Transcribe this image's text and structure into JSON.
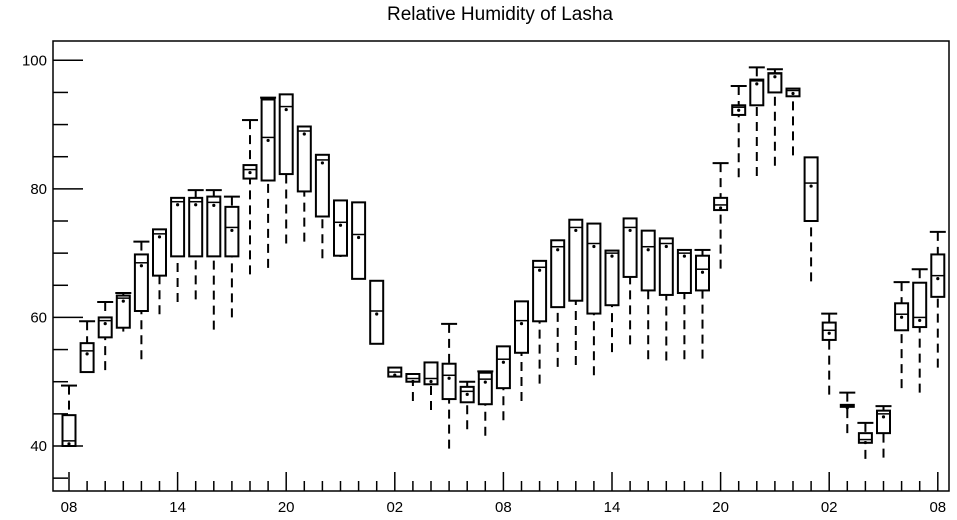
{
  "chart_data": {
    "type": "box",
    "title": "Relative Humidity of Lasha",
    "xlabel": "",
    "ylabel": "",
    "ylim": [
      33,
      103
    ],
    "y_ticks": [
      40,
      60,
      80,
      100
    ],
    "x_tick_labels": [
      "08",
      "14",
      "20",
      "02",
      "08",
      "14",
      "20",
      "02",
      "08"
    ],
    "x_tick_positions": [
      0,
      6,
      12,
      18,
      24,
      30,
      36,
      42,
      48
    ],
    "boxes": [
      {
        "x": 0,
        "whisker_low": 40.0,
        "q1": 40.0,
        "median": 40.8,
        "q3": 44.8,
        "whisker_high": 49.4
      },
      {
        "x": 1,
        "whisker_low": 51.5,
        "q1": 51.5,
        "median": 54.8,
        "q3": 56.0,
        "whisker_high": 59.4
      },
      {
        "x": 2,
        "whisker_low": 51.8,
        "q1": 56.9,
        "median": 59.5,
        "q3": 60.0,
        "whisker_high": 62.4
      },
      {
        "x": 3,
        "whisker_low": 57.8,
        "q1": 58.4,
        "median": 63.0,
        "q3": 63.4,
        "whisker_high": 63.8
      },
      {
        "x": 4,
        "whisker_low": 53.5,
        "q1": 61.0,
        "median": 68.5,
        "q3": 69.8,
        "whisker_high": 71.8
      },
      {
        "x": 5,
        "whisker_low": 60.5,
        "q1": 66.5,
        "median": 73.0,
        "q3": 73.7,
        "whisker_high": 73.7
      },
      {
        "x": 6,
        "whisker_low": 62.4,
        "q1": 69.5,
        "median": 78.0,
        "q3": 78.6,
        "whisker_high": 78.6
      },
      {
        "x": 7,
        "whisker_low": 62.8,
        "q1": 69.5,
        "median": 78.0,
        "q3": 78.6,
        "whisker_high": 79.8
      },
      {
        "x": 8,
        "whisker_low": 58.1,
        "q1": 69.5,
        "median": 77.9,
        "q3": 78.8,
        "whisker_high": 79.8
      },
      {
        "x": 9,
        "whisker_low": 60.0,
        "q1": 69.5,
        "median": 74.0,
        "q3": 77.2,
        "whisker_high": 78.8
      },
      {
        "x": 10,
        "whisker_low": 66.7,
        "q1": 81.6,
        "median": 83.0,
        "q3": 83.7,
        "whisker_high": 90.7
      },
      {
        "x": 11,
        "whisker_low": 67.7,
        "q1": 81.3,
        "median": 88.0,
        "q3": 93.9,
        "whisker_high": 94.2
      },
      {
        "x": 12,
        "whisker_low": 71.5,
        "q1": 82.3,
        "median": 92.8,
        "q3": 94.7,
        "whisker_high": 94.7
      },
      {
        "x": 13,
        "whisker_low": 71.8,
        "q1": 79.6,
        "median": 89.0,
        "q3": 89.7,
        "whisker_high": 89.7
      },
      {
        "x": 14,
        "whisker_low": 69.2,
        "q1": 75.7,
        "median": 84.5,
        "q3": 85.3,
        "whisker_high": 85.3
      },
      {
        "x": 15,
        "whisker_low": 69.4,
        "q1": 69.6,
        "median": 74.8,
        "q3": 78.2,
        "whisker_high": 78.2
      },
      {
        "x": 16,
        "whisker_low": 66.0,
        "q1": 66.0,
        "median": 72.9,
        "q3": 77.9,
        "whisker_high": 77.9
      },
      {
        "x": 17,
        "whisker_low": 55.9,
        "q1": 55.9,
        "median": 61.0,
        "q3": 65.7,
        "whisker_high": 65.7
      },
      {
        "x": 18,
        "whisker_low": 50.8,
        "q1": 50.8,
        "median": 51.5,
        "q3": 52.2,
        "whisker_high": 52.2
      },
      {
        "x": 19,
        "whisker_low": 47.0,
        "q1": 50.0,
        "median": 50.5,
        "q3": 51.2,
        "whisker_high": 51.2
      },
      {
        "x": 20,
        "whisker_low": 45.6,
        "q1": 49.6,
        "median": 50.5,
        "q3": 53.0,
        "whisker_high": 53.0
      },
      {
        "x": 21,
        "whisker_low": 39.6,
        "q1": 47.3,
        "median": 51.0,
        "q3": 52.8,
        "whisker_high": 59.0
      },
      {
        "x": 22,
        "whisker_low": 42.6,
        "q1": 46.8,
        "median": 48.5,
        "q3": 49.2,
        "whisker_high": 50.0
      },
      {
        "x": 23,
        "whisker_low": 41.6,
        "q1": 46.5,
        "median": 50.4,
        "q3": 51.4,
        "whisker_high": 51.6
      },
      {
        "x": 24,
        "whisker_low": 44.0,
        "q1": 49.0,
        "median": 53.5,
        "q3": 55.5,
        "whisker_high": 55.5
      },
      {
        "x": 25,
        "whisker_low": 47.0,
        "q1": 54.5,
        "median": 59.5,
        "q3": 62.5,
        "whisker_high": 62.5
      },
      {
        "x": 26,
        "whisker_low": 49.7,
        "q1": 59.4,
        "median": 67.8,
        "q3": 68.8,
        "whisker_high": 68.8
      },
      {
        "x": 27,
        "whisker_low": 52.3,
        "q1": 61.6,
        "median": 71.0,
        "q3": 72.0,
        "whisker_high": 72.0
      },
      {
        "x": 28,
        "whisker_low": 52.6,
        "q1": 62.6,
        "median": 74.0,
        "q3": 75.2,
        "whisker_high": 75.2
      },
      {
        "x": 29,
        "whisker_low": 51.0,
        "q1": 60.6,
        "median": 71.5,
        "q3": 74.6,
        "whisker_high": 74.6
      },
      {
        "x": 30,
        "whisker_low": 54.6,
        "q1": 61.9,
        "median": 70.0,
        "q3": 70.4,
        "whisker_high": 70.4
      },
      {
        "x": 31,
        "whisker_low": 55.8,
        "q1": 66.3,
        "median": 74.0,
        "q3": 75.4,
        "whisker_high": 75.4
      },
      {
        "x": 32,
        "whisker_low": 53.5,
        "q1": 64.2,
        "median": 71.0,
        "q3": 73.5,
        "whisker_high": 73.5
      },
      {
        "x": 33,
        "whisker_low": 53.3,
        "q1": 63.5,
        "median": 71.5,
        "q3": 72.3,
        "whisker_high": 72.3
      },
      {
        "x": 34,
        "whisker_low": 53.5,
        "q1": 63.8,
        "median": 70.0,
        "q3": 70.5,
        "whisker_high": 70.5
      },
      {
        "x": 35,
        "whisker_low": 53.6,
        "q1": 64.2,
        "median": 67.5,
        "q3": 69.6,
        "whisker_high": 70.5
      },
      {
        "x": 36,
        "whisker_low": 67.6,
        "q1": 76.7,
        "median": 77.5,
        "q3": 78.6,
        "whisker_high": 84.0
      },
      {
        "x": 37,
        "whisker_low": 81.8,
        "q1": 91.5,
        "median": 92.7,
        "q3": 93.0,
        "whisker_high": 96.0
      },
      {
        "x": 38,
        "whisker_low": 82.0,
        "q1": 93.0,
        "median": 96.8,
        "q3": 97.0,
        "whisker_high": 98.9
      },
      {
        "x": 39,
        "whisker_low": 83.6,
        "q1": 95.0,
        "median": 97.9,
        "q3": 98.0,
        "whisker_high": 98.6
      },
      {
        "x": 40,
        "whisker_low": 85.2,
        "q1": 94.4,
        "median": 95.3,
        "q3": 95.6,
        "whisker_high": 95.6
      },
      {
        "x": 41,
        "whisker_low": 65.6,
        "q1": 75.0,
        "median": 80.9,
        "q3": 84.9,
        "whisker_high": 84.9
      },
      {
        "x": 42,
        "whisker_low": 48.0,
        "q1": 56.5,
        "median": 58.0,
        "q3": 59.2,
        "whisker_high": 60.6
      },
      {
        "x": 43,
        "whisker_low": 42.0,
        "q1": 46.4,
        "median": 46.4,
        "q3": 46.4,
        "whisker_high": 48.3
      },
      {
        "x": 44,
        "whisker_low": 38.0,
        "q1": 40.5,
        "median": 41.0,
        "q3": 42.0,
        "whisker_high": 43.6
      },
      {
        "x": 45,
        "whisker_low": 38.2,
        "q1": 42.0,
        "median": 45.0,
        "q3": 45.5,
        "whisker_high": 46.2
      },
      {
        "x": 46,
        "whisker_low": 49.0,
        "q1": 58.0,
        "median": 60.5,
        "q3": 62.2,
        "whisker_high": 65.5
      },
      {
        "x": 47,
        "whisker_low": 48.3,
        "q1": 58.5,
        "median": 60.0,
        "q3": 65.4,
        "whisker_high": 67.5
      },
      {
        "x": 48,
        "whisker_low": 52.2,
        "q1": 63.2,
        "median": 66.5,
        "q3": 69.8,
        "whisker_high": 73.3
      }
    ]
  }
}
